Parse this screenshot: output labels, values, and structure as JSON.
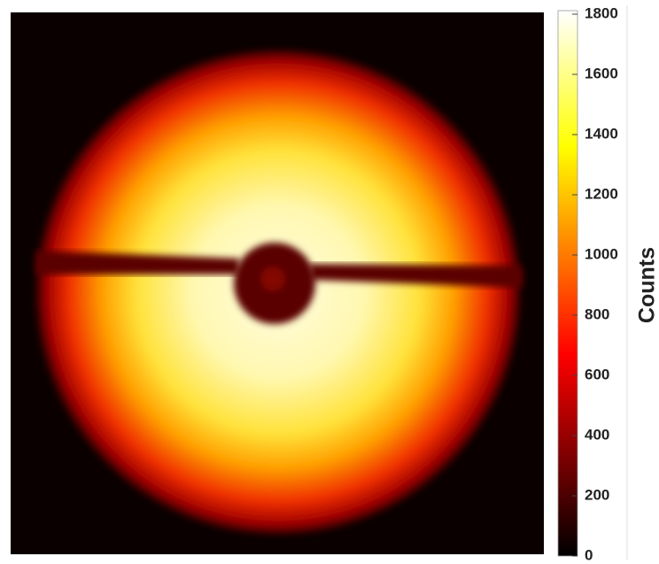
{
  "chart_data": {
    "type": "image",
    "colorbar": {
      "label": "Counts",
      "lim": [
        0,
        1800
      ],
      "ticks": [
        0,
        200,
        400,
        600,
        800,
        1000,
        1200,
        1400,
        1600,
        1800
      ],
      "colormap": "hot"
    }
  }
}
